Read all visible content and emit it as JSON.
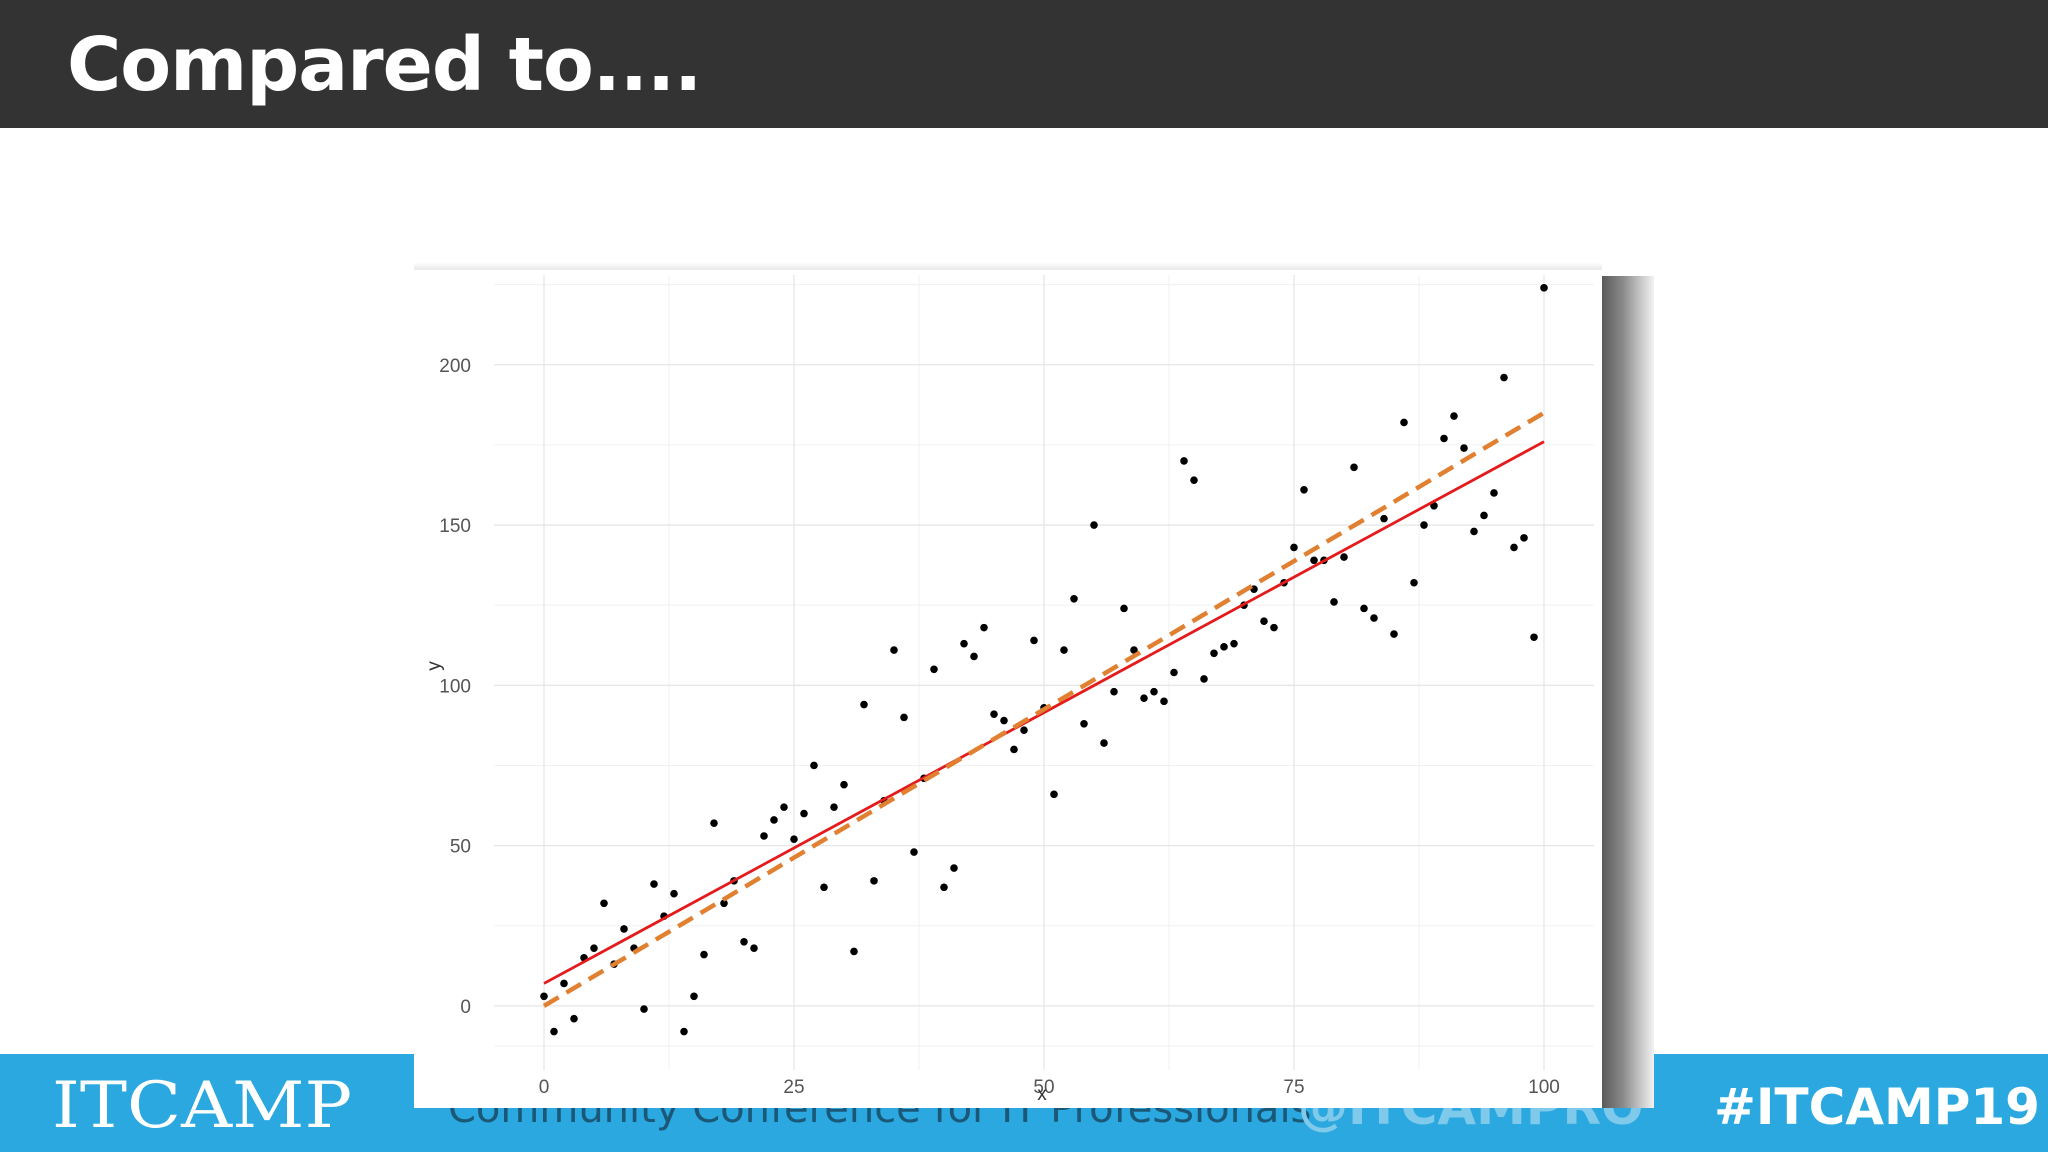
{
  "slide": {
    "title": "Compared to....",
    "footer_logo": "ITCAMP",
    "footer_tagline": "Community Conference for IT Professionals",
    "footer_handle": "@ITCAMPRO",
    "hashtag": "#ITCAMP19"
  },
  "colors": {
    "title_bar": "#333333",
    "footer_bar": "#2aa8df",
    "points": "#000000",
    "fit_line": "#e41a1c",
    "reference_line": "#e08030"
  },
  "chart_data": {
    "type": "scatter",
    "title": "",
    "xlabel": "x",
    "ylabel": "y",
    "xlim": [
      -5,
      105
    ],
    "ylim": [
      -20,
      228
    ],
    "x_ticks": [
      0,
      25,
      50,
      75,
      100
    ],
    "y_ticks": [
      0,
      50,
      100,
      150,
      200
    ],
    "x_tick_labels": [
      "0",
      "25",
      "50",
      "75",
      "100"
    ],
    "y_tick_labels": [
      "0",
      "50",
      "100",
      "150",
      "200"
    ],
    "grid": true,
    "legend": "none",
    "points": {
      "x": [
        0,
        1,
        2,
        3,
        4,
        5,
        6,
        7,
        8,
        9,
        10,
        11,
        12,
        13,
        14,
        15,
        16,
        17,
        18,
        19,
        20,
        21,
        22,
        23,
        24,
        25,
        26,
        27,
        28,
        29,
        30,
        31,
        32,
        33,
        34,
        35,
        36,
        37,
        38,
        39,
        40,
        41,
        42,
        43,
        44,
        45,
        46,
        47,
        48,
        49,
        50,
        51,
        52,
        53,
        54,
        55,
        56,
        57,
        58,
        59,
        60,
        61,
        62,
        63,
        64,
        65,
        66,
        67,
        68,
        69,
        70,
        71,
        72,
        73,
        74,
        75,
        76,
        77,
        78,
        79,
        80,
        81,
        82,
        83,
        84,
        85,
        86,
        87,
        88,
        89,
        90,
        91,
        92,
        93,
        94,
        95,
        96,
        97,
        98,
        99,
        100
      ],
      "y": [
        3,
        -8,
        7,
        -4,
        15,
        18,
        32,
        13,
        24,
        18,
        -1,
        38,
        28,
        35,
        -8,
        3,
        16,
        57,
        32,
        39,
        20,
        18,
        53,
        58,
        62,
        52,
        60,
        75,
        37,
        62,
        69,
        17,
        94,
        39,
        64,
        111,
        90,
        48,
        71,
        105,
        37,
        43,
        113,
        109,
        118,
        91,
        89,
        80,
        86,
        114,
        93,
        66,
        111,
        127,
        88,
        150,
        82,
        98,
        124,
        111,
        96,
        98,
        95,
        104,
        170,
        164,
        102,
        110,
        112,
        113,
        125,
        130,
        120,
        118,
        132,
        143,
        161,
        139,
        139,
        126,
        140,
        168,
        124,
        121,
        152,
        116,
        182,
        132,
        150,
        156,
        177,
        184,
        174,
        148,
        153,
        160,
        196,
        143,
        146,
        115,
        224
      ]
    },
    "series": [
      {
        "name": "",
        "kind": "fit",
        "x": [
          0,
          100
        ],
        "y": [
          7,
          176
        ]
      },
      {
        "name": "",
        "kind": "reference",
        "x": [
          0,
          100
        ],
        "y": [
          0,
          185
        ]
      }
    ]
  }
}
